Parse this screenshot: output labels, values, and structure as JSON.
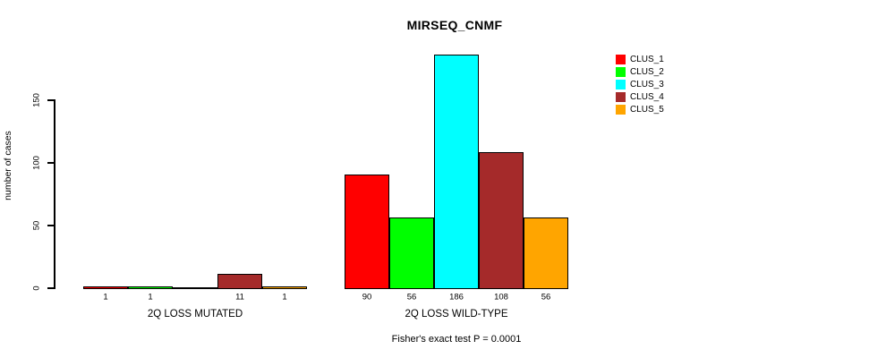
{
  "chart_data": {
    "type": "bar",
    "title": "MIRSEQ_CNMF",
    "ylabel": "number of cases",
    "ylim": [
      0,
      150
    ],
    "yticks": [
      0,
      50,
      100,
      150
    ],
    "grid": false,
    "legend_position": "top-right",
    "footnote": "Fisher's exact test P = 0.0001",
    "series": [
      {
        "name": "CLUS_1",
        "color": "#FF0000",
        "values": [
          1,
          90
        ]
      },
      {
        "name": "CLUS_2",
        "color": "#00FF00",
        "values": [
          1,
          56
        ]
      },
      {
        "name": "CLUS_3",
        "color": "#00FFFF",
        "values": [
          0,
          186
        ]
      },
      {
        "name": "CLUS_4",
        "color": "#A52A2A",
        "values": [
          11,
          108
        ]
      },
      {
        "name": "CLUS_5",
        "color": "#FFA500",
        "values": [
          1,
          56
        ]
      }
    ],
    "groups": [
      {
        "label": "2Q LOSS MUTATED",
        "bar_labels": [
          "1",
          "1",
          "",
          "11",
          "1"
        ]
      },
      {
        "label": "2Q LOSS WILD-TYPE",
        "bar_labels": [
          "90",
          "56",
          "186",
          "108",
          "56"
        ]
      }
    ]
  }
}
